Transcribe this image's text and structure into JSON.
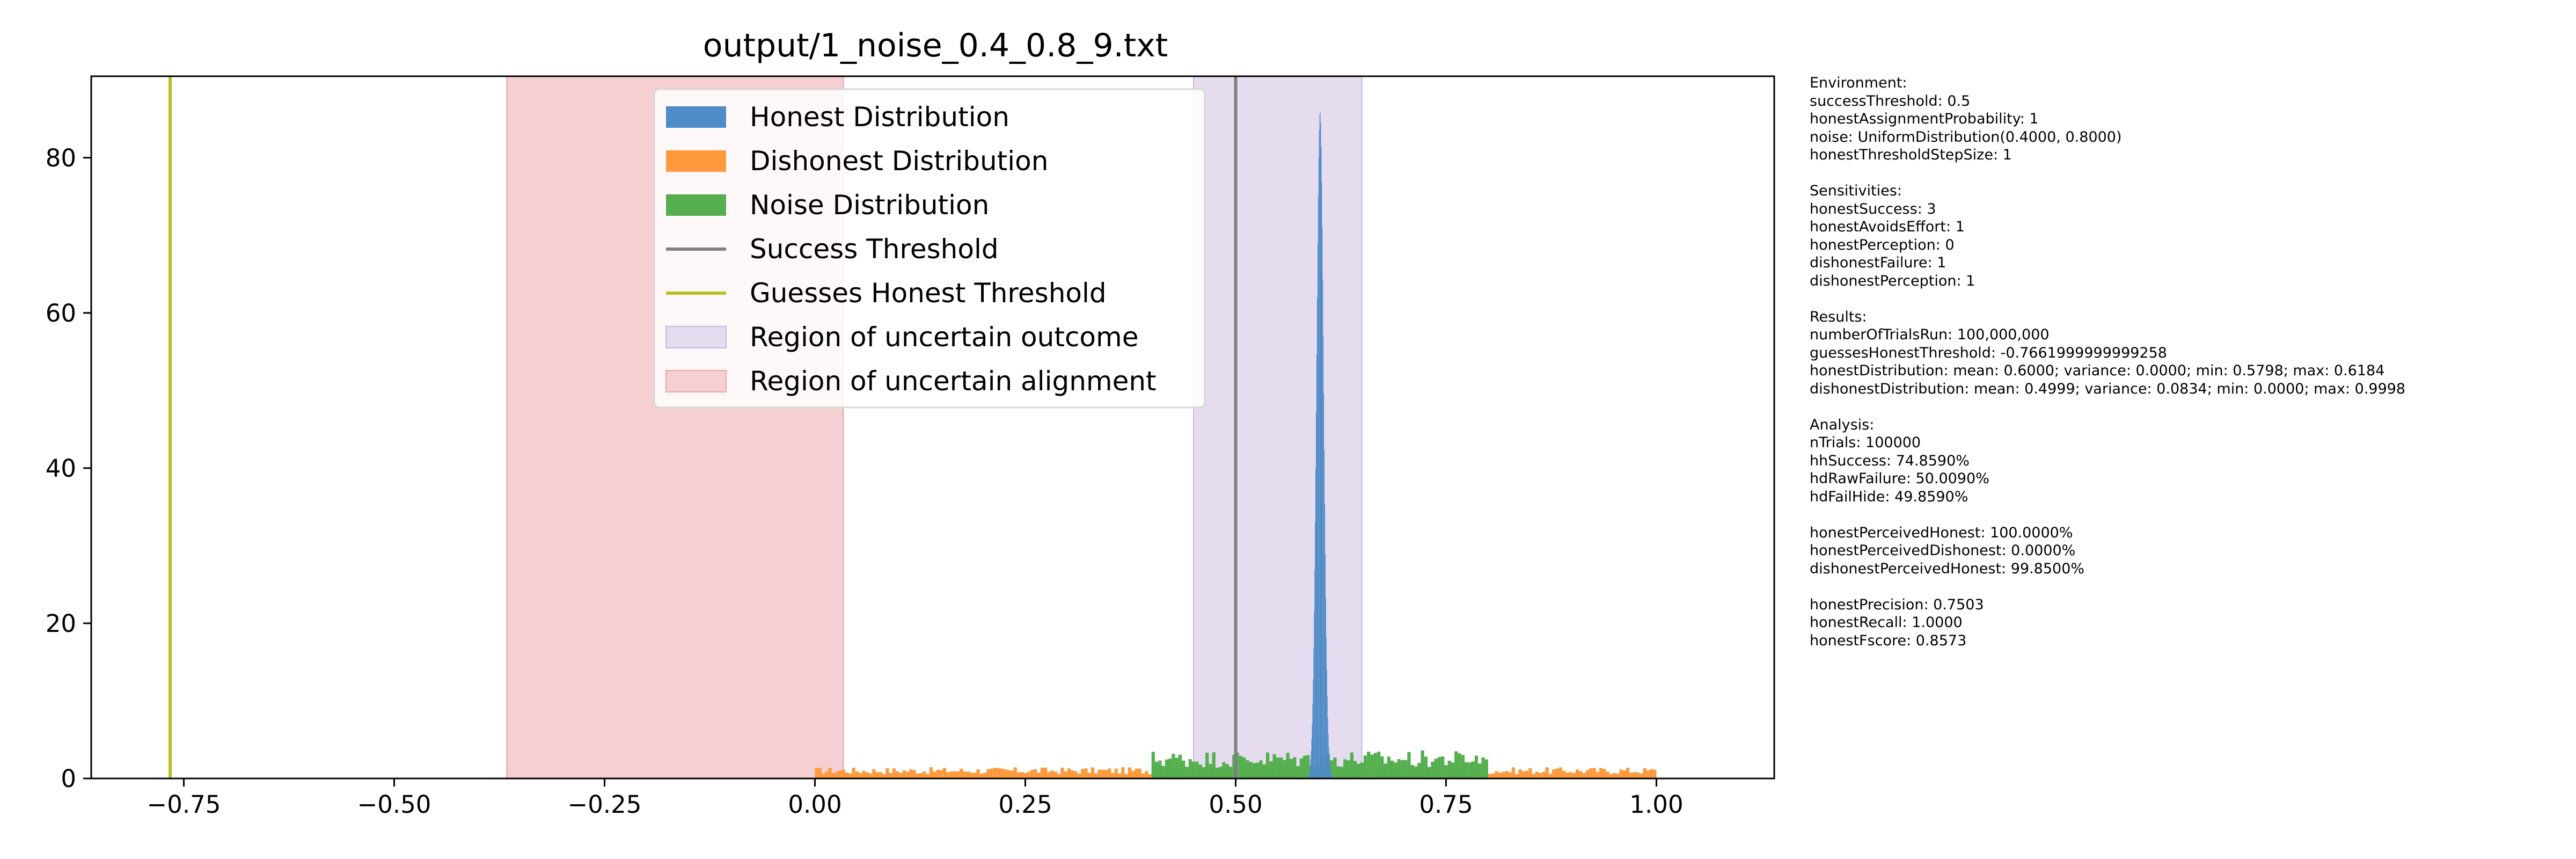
{
  "chart_data": {
    "type": "bar",
    "title": "output/1_noise_0.4_0.8_9.txt",
    "xlabel": "",
    "ylabel": "",
    "xlim": [
      -0.86,
      1.14
    ],
    "ylim": [
      0,
      90.5
    ],
    "xticks": [
      -0.75,
      -0.5,
      -0.25,
      0.0,
      0.25,
      0.5,
      0.75,
      1.0
    ],
    "xtick_labels": [
      "−0.75",
      "−0.50",
      "−0.25",
      "0.00",
      "0.25",
      "0.50",
      "0.75",
      "1.00"
    ],
    "yticks": [
      0,
      20,
      40,
      60,
      80
    ],
    "ytick_labels": [
      "0",
      "20",
      "40",
      "60",
      "80"
    ],
    "grid": false,
    "legend_position": "top-center",
    "legend": [
      {
        "label": "Honest Distribution",
        "kind": "patch",
        "color": "#4f8bc6"
      },
      {
        "label": "Dishonest Distribution",
        "kind": "patch",
        "color": "#ff9a3c"
      },
      {
        "label": "Noise Distribution",
        "kind": "patch",
        "color": "#55af4f"
      },
      {
        "label": "Success Threshold",
        "kind": "line",
        "color": "#7f7f7f"
      },
      {
        "label": "Guesses Honest Threshold",
        "kind": "line",
        "color": "#bcbd22"
      },
      {
        "label": "Region of uncertain outcome",
        "kind": "patch",
        "color": "#e6dcf0",
        "edge": "#c9b8e0"
      },
      {
        "label": "Region of uncertain alignment",
        "kind": "patch",
        "color": "#f5cfd1",
        "edge": "#eaa4a8"
      }
    ],
    "regions": [
      {
        "name": "Region of uncertain alignment",
        "x0": -0.3662,
        "x1": 0.0338,
        "color": "#f5cfd1",
        "edge": "#eaa4a8"
      },
      {
        "name": "Region of uncertain outcome",
        "x0": 0.45,
        "x1": 0.65,
        "color": "#e6dcf0",
        "edge": "#c9b8e0"
      }
    ],
    "lines": [
      {
        "name": "Success Threshold",
        "x": 0.5,
        "color": "#7f7f7f"
      },
      {
        "name": "Guesses Honest Threshold",
        "x": -0.7662,
        "color": "#bcbd22"
      }
    ],
    "series": [
      {
        "name": "Dishonest Distribution",
        "type": "uniform",
        "x0": 0.0,
        "x1": 1.0,
        "density": 1.0,
        "color": "#ff9a3c"
      },
      {
        "name": "Noise Distribution",
        "type": "uniform",
        "x0": 0.4,
        "x1": 0.8,
        "density": 2.5,
        "color": "#55af4f"
      },
      {
        "name": "Honest Distribution",
        "type": "peak",
        "center": 0.6,
        "min": 0.5798,
        "max": 0.6184,
        "peak": 86,
        "color": "#4f8bc6"
      }
    ]
  },
  "side_panel": {
    "lines": [
      "Environment:",
      "successThreshold: 0.5",
      "honestAssignmentProbability: 1",
      "noise: UniformDistribution(0.4000, 0.8000)",
      "honestThresholdStepSize: 1",
      "",
      "Sensitivities:",
      "honestSuccess: 3",
      "honestAvoidsEffort: 1",
      "honestPerception: 0",
      "dishonestFailure: 1",
      "dishonestPerception: 1",
      "",
      "Results:",
      "numberOfTrialsRun: 100,000,000",
      "guessesHonestThreshold: -0.7661999999999258",
      "honestDistribution: mean: 0.6000; variance: 0.0000; min: 0.5798; max: 0.6184",
      "dishonestDistribution: mean: 0.4999; variance: 0.0834; min: 0.0000; max: 0.9998",
      "",
      "Analysis:",
      "nTrials: 100000",
      "hhSuccess: 74.8590%",
      "hdRawFailure: 50.0090%",
      "hdFailHide: 49.8590%",
      "",
      "honestPerceivedHonest: 100.0000%",
      "honestPerceivedDishonest: 0.0000%",
      "dishonestPerceivedHonest: 99.8500%",
      "",
      "honestPrecision: 0.7503",
      "honestRecall: 1.0000",
      "honestFscore: 0.8573"
    ]
  }
}
